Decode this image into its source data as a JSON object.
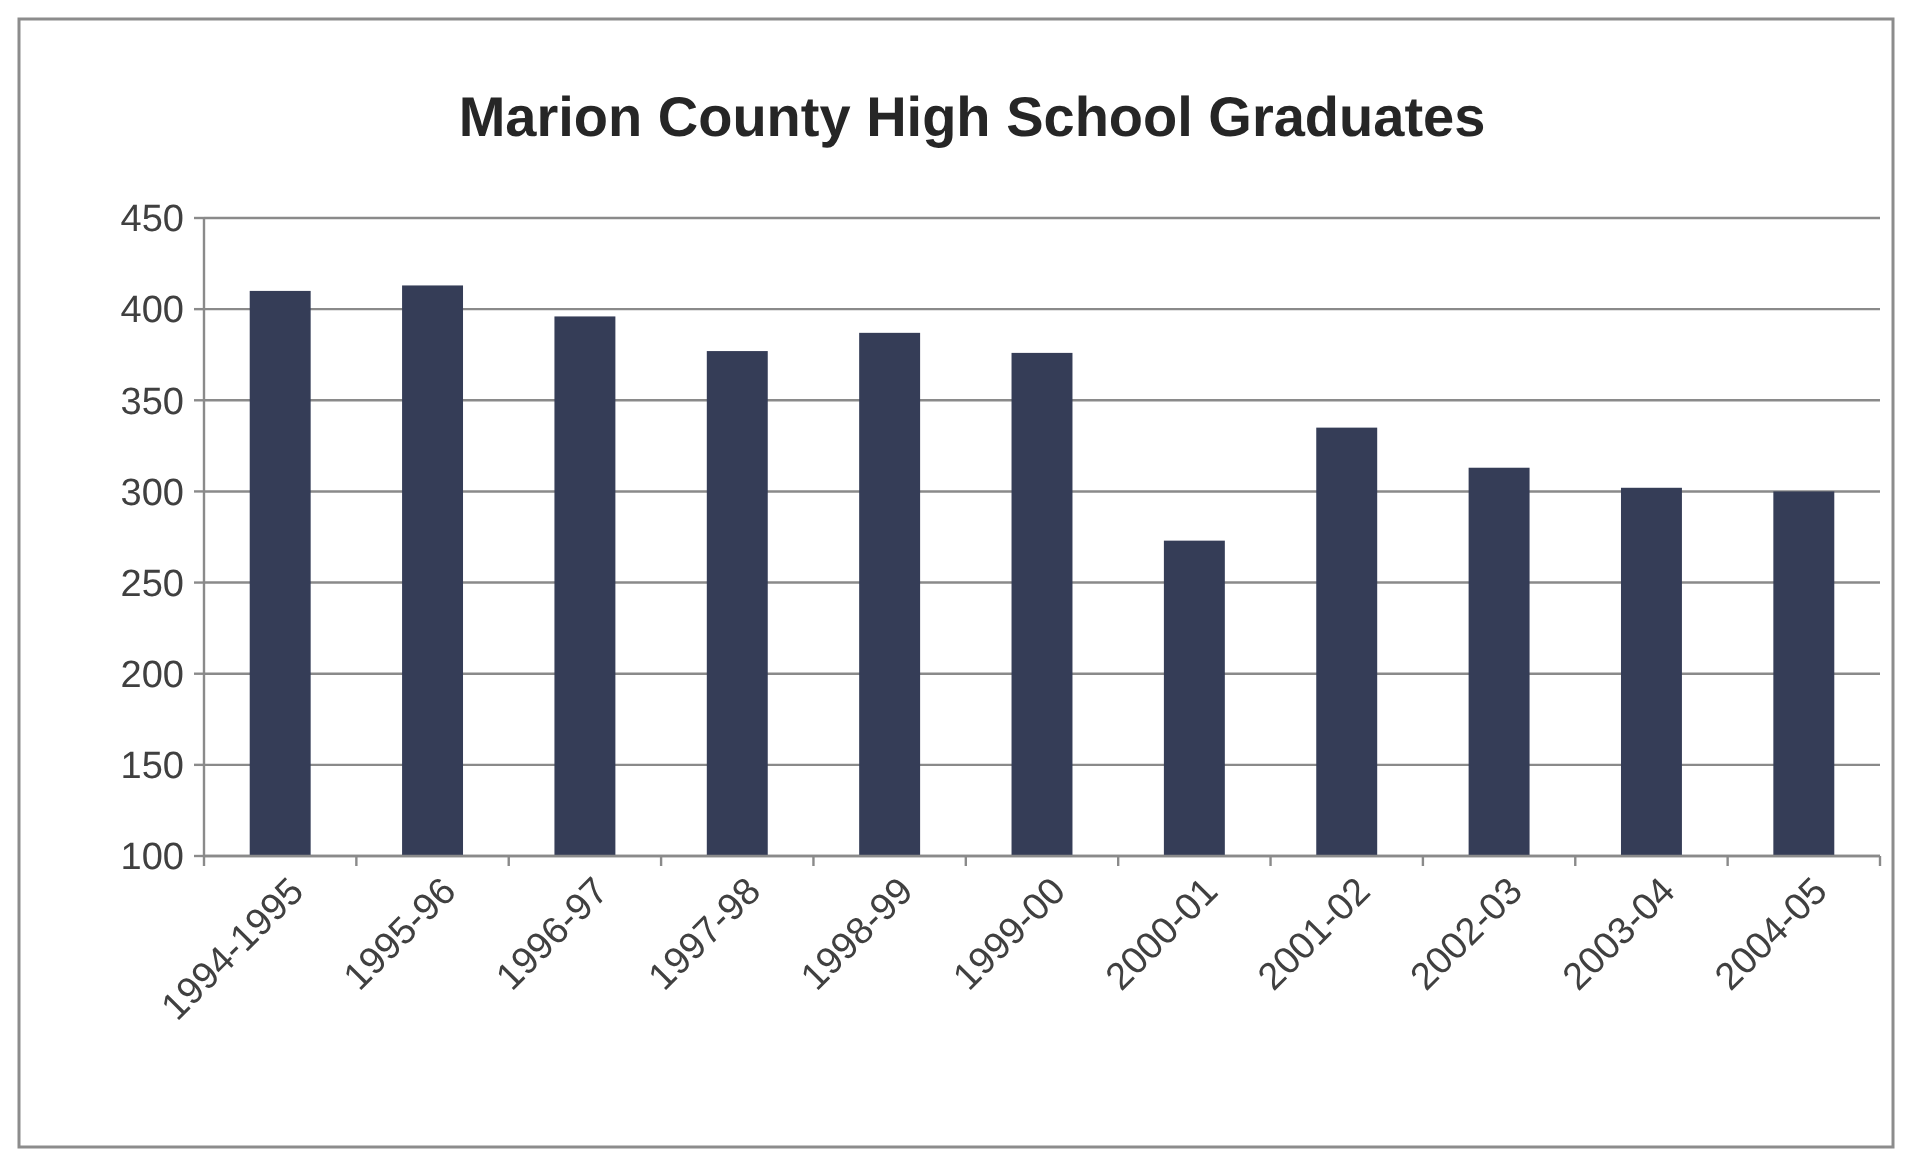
{
  "chart_data": {
    "type": "bar",
    "title": "Marion County High School Graduates",
    "categories": [
      "1994-1995",
      "1995-96",
      "1996-97",
      "1997-98",
      "1998-99",
      "1999-00",
      "2000-01",
      "2001-02",
      "2002-03",
      "2003-04",
      "2004-05"
    ],
    "values": [
      410,
      413,
      396,
      377,
      387,
      376,
      273,
      335,
      313,
      302,
      300
    ],
    "color": "#353d57",
    "ylim": [
      100,
      450
    ],
    "yticks": [
      100,
      150,
      200,
      250,
      300,
      350,
      400,
      450
    ],
    "grid": "y"
  }
}
